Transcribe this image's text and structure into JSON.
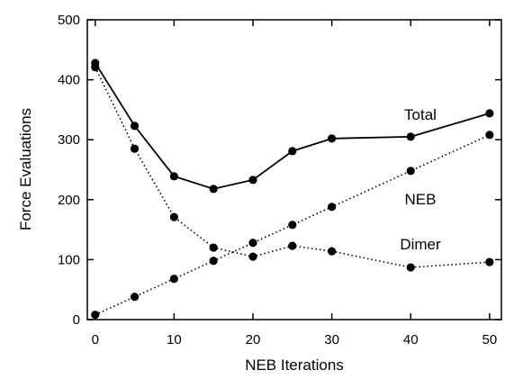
{
  "chart_data": {
    "type": "line",
    "title": "",
    "xlabel": "NEB Iterations",
    "ylabel": "Force Evaluations",
    "xlim": [
      -1,
      51.5
    ],
    "ylim": [
      0,
      500
    ],
    "xticks": [
      0,
      10,
      20,
      30,
      40,
      50
    ],
    "yticks": [
      0,
      100,
      200,
      300,
      400,
      500
    ],
    "grid": false,
    "legend": "inline labels",
    "series": [
      {
        "name": "Total",
        "style": "solid",
        "x": [
          0,
          5,
          10,
          15,
          20,
          25,
          30,
          40,
          50
        ],
        "y": [
          428,
          323,
          239,
          218,
          233,
          281,
          302,
          305,
          344
        ]
      },
      {
        "name": "NEB",
        "style": "dotted",
        "x": [
          0,
          5,
          10,
          15,
          20,
          25,
          30,
          40,
          50
        ],
        "y": [
          8,
          38,
          68,
          98,
          128,
          158,
          188,
          248,
          308
        ]
      },
      {
        "name": "Dimer",
        "style": "dotted",
        "x": [
          0,
          5,
          10,
          15,
          20,
          25,
          30,
          40,
          50
        ],
        "y": [
          421,
          285,
          171,
          120,
          105,
          123,
          114,
          87,
          96
        ]
      }
    ]
  }
}
